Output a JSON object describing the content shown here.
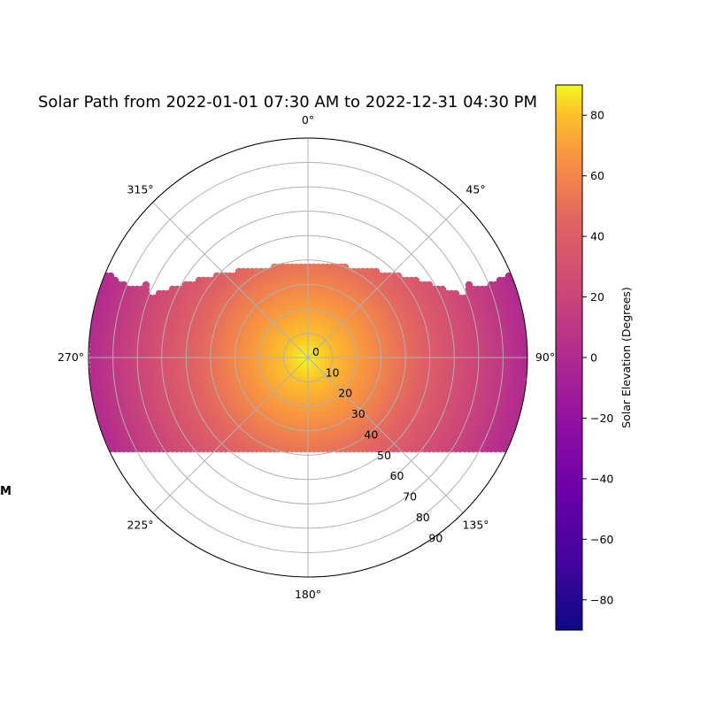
{
  "chart_data": {
    "type": "scatter",
    "projection": "polar",
    "title": "Solar Path from 2022-01-01 07:30 AM to 2022-12-31 04:30 PM",
    "theta_zero": "top",
    "theta_direction": "clockwise",
    "theta_ticks": [
      "0°",
      "45°",
      "90°",
      "135°",
      "180°",
      "225°",
      "270°",
      "315°"
    ],
    "r_ticks": [
      "0",
      "10",
      "20",
      "30",
      "40",
      "50",
      "60",
      "70",
      "80",
      "90"
    ],
    "rlim": [
      0,
      90
    ],
    "grid": true,
    "side_label": "M",
    "colorbar": {
      "label": "Solar Elevation (Degrees)",
      "colormap": "plasma",
      "range": [
        -90,
        90
      ],
      "ticks": [
        "80",
        "60",
        "40",
        "20",
        "0",
        "−20",
        "−40",
        "−60",
        "−80"
      ]
    },
    "series": [
      {
        "elevation_min": 0,
        "elevation_max": 90,
        "note_region": "band spanning azimuth ~300° through 0°/90° and 180°–270°, limited by the horizontal sun-path envelope"
      }
    ]
  }
}
